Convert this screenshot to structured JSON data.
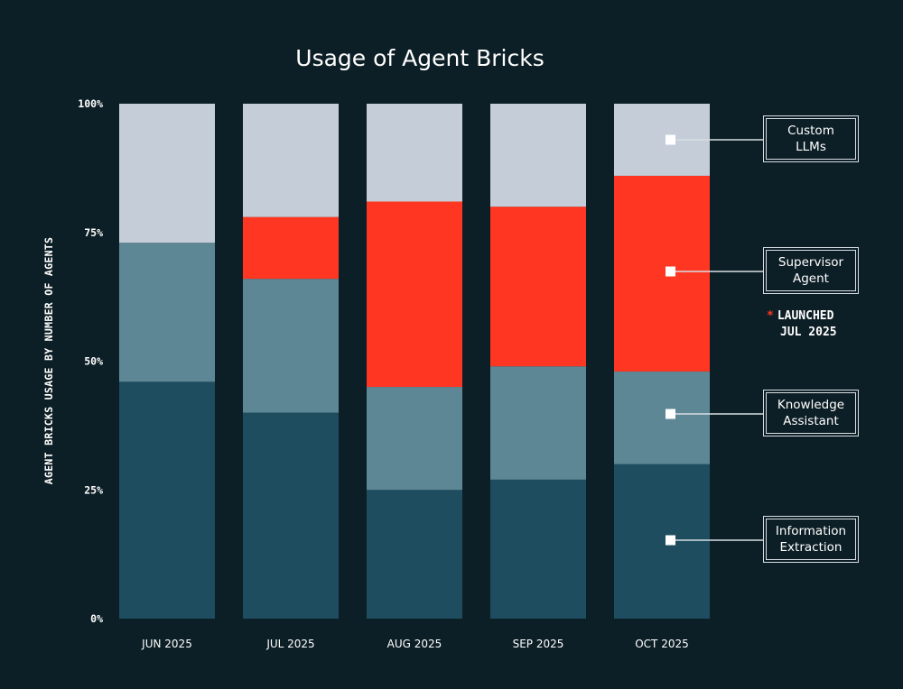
{
  "chart_data": {
    "type": "bar",
    "stacked": true,
    "normalized": true,
    "title": "Usage of Agent Bricks",
    "xlabel": "",
    "ylabel": "AGENT BRICKS USAGE BY NUMBER OF AGENTS",
    "ylim": [
      0,
      100
    ],
    "yticks": [
      "0%",
      "25%",
      "50%",
      "75%",
      "100%"
    ],
    "categories": [
      "JUN 2025",
      "JUL 2025",
      "AUG 2025",
      "SEP 2025",
      "OCT 2025"
    ],
    "grid": false,
    "legend_placement": "right",
    "series": [
      {
        "name": "Information Extraction",
        "color": "#1e4d5f",
        "values": [
          46,
          40,
          25,
          27,
          30
        ]
      },
      {
        "name": "Knowledge Assistant",
        "color": "#5e8796",
        "values": [
          27,
          26,
          20,
          22,
          18
        ]
      },
      {
        "name": "Supervisor Agent",
        "color": "#ff3621",
        "values": [
          0,
          12,
          36,
          31,
          38
        ]
      },
      {
        "name": "Custom LLMs",
        "color": "#c5ced8",
        "values": [
          27,
          22,
          19,
          20,
          14
        ]
      }
    ],
    "legend": [
      {
        "line1": "Custom",
        "line2": "LLMs"
      },
      {
        "line1": "Supervisor",
        "line2": "Agent"
      },
      {
        "line1": "Knowledge",
        "line2": "Assistant"
      },
      {
        "line1": "Information",
        "line2": "Extraction"
      }
    ],
    "annotation": {
      "marker": "*",
      "line1": "LAUNCHED",
      "line2": "JUL 2025"
    }
  },
  "colors": {
    "background": "#0d1f26",
    "text": "#ffffff"
  }
}
